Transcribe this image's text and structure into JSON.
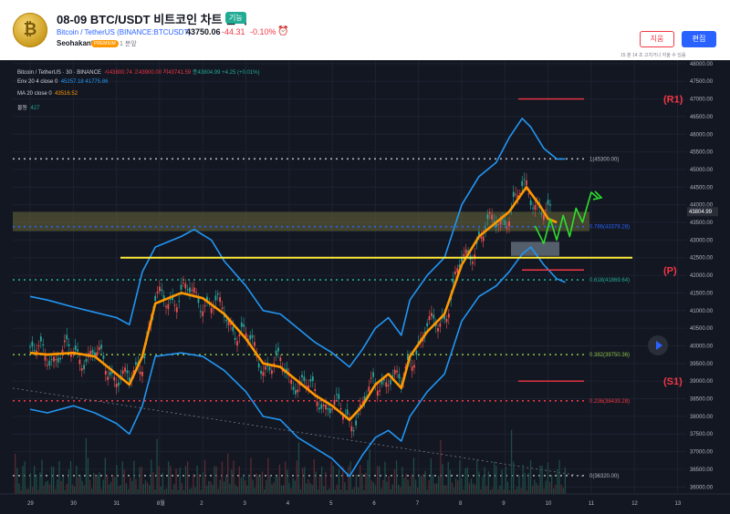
{
  "header": {
    "logo_symbol": "₿",
    "title": "08-09 BTC/USDT 비트코인 차트 분석",
    "badge": "기능",
    "symbol": "Bitcoin / TetherUS (BINANCE:BTCUSDT)",
    "last_price": "43750.06",
    "change": "-44.31",
    "change_pct": "-0.10%",
    "alarm_icon": "alarm-clock-icon",
    "author": "Seohakant",
    "author_badge": "PREMIUM",
    "time_ago": "1 분앞",
    "delete_label": "지움",
    "edit_label": "편집",
    "edit_note": "15 분 14 초 고치거나 지울 수 있음",
    "colors": {
      "accent": "#2962ff",
      "down": "#f23645",
      "up": "#22ab94"
    }
  },
  "legend": {
    "line1": {
      "name": "Bitcoin / TetherUS · 30 · BINANCE",
      "o": "시43800.74",
      "h": "고43900.00",
      "l": "저43741.59",
      "c": "종43804.99",
      "chg": "+4.25 (+0.01%)"
    },
    "line2": {
      "name": "Env 20 4 close 0",
      "v1": "45257.18",
      "v2": "41775.86"
    },
    "line3": {
      "name": "MA 20 close 0",
      "v1": "43516.52"
    },
    "line4": {
      "name": "물동",
      "v1": "427"
    }
  },
  "chart_data": {
    "type": "line",
    "title": "Bitcoin / TetherUS · 30 · BINANCE",
    "x_ticks": [
      "29",
      "30",
      "31",
      "8월",
      "2",
      "3",
      "4",
      "5",
      "6",
      "7",
      "8",
      "9",
      "10",
      "11",
      "12",
      "13"
    ],
    "ylim": [
      35800,
      48100
    ],
    "y_ticks": [
      48000,
      47500,
      47000,
      46500,
      46000,
      45500,
      45000,
      44500,
      44000,
      43500,
      43000,
      42500,
      42000,
      41500,
      41000,
      40500,
      40000,
      39500,
      39000,
      38500,
      38000,
      37500,
      37000,
      36500,
      36000
    ],
    "last_price_label": "43804.99",
    "series": [
      {
        "name": "MA 20 close 0",
        "color": "#ff9800",
        "points": [
          [
            0,
            39800
          ],
          [
            0.4,
            39750
          ],
          [
            1,
            39800
          ],
          [
            1.5,
            39700
          ],
          [
            2,
            39200
          ],
          [
            2.3,
            38900
          ],
          [
            2.6,
            39700
          ],
          [
            2.9,
            41200
          ],
          [
            3.5,
            41500
          ],
          [
            4,
            41350
          ],
          [
            4.5,
            40900
          ],
          [
            5,
            40200
          ],
          [
            5.4,
            39500
          ],
          [
            5.8,
            39400
          ],
          [
            6.2,
            39000
          ],
          [
            6.6,
            38600
          ],
          [
            7,
            38300
          ],
          [
            7.4,
            37900
          ],
          [
            7.7,
            38300
          ],
          [
            8.0,
            38900
          ],
          [
            8.3,
            39200
          ],
          [
            8.6,
            38800
          ],
          [
            8.8,
            39700
          ],
          [
            9.2,
            40400
          ],
          [
            9.6,
            40900
          ],
          [
            10.0,
            42300
          ],
          [
            10.4,
            43100
          ],
          [
            10.8,
            43500
          ],
          [
            11.1,
            43800
          ],
          [
            11.5,
            44500
          ],
          [
            11.8,
            44000
          ],
          [
            12.0,
            43600
          ],
          [
            12.2,
            43500
          ]
        ]
      },
      {
        "name": "Env 20 4 close 0 (upper)",
        "color": "#2196f3",
        "points": [
          [
            0,
            41400
          ],
          [
            0.4,
            41300
          ],
          [
            1,
            41100
          ],
          [
            1.5,
            40950
          ],
          [
            2,
            40800
          ],
          [
            2.3,
            40600
          ],
          [
            2.6,
            42100
          ],
          [
            2.9,
            42800
          ],
          [
            3.5,
            43100
          ],
          [
            3.8,
            43300
          ],
          [
            4.2,
            43000
          ],
          [
            4.5,
            42400
          ],
          [
            5,
            41700
          ],
          [
            5.4,
            41000
          ],
          [
            5.8,
            40900
          ],
          [
            6.2,
            40500
          ],
          [
            6.6,
            40100
          ],
          [
            7,
            39800
          ],
          [
            7.4,
            39400
          ],
          [
            7.7,
            39900
          ],
          [
            8.0,
            40500
          ],
          [
            8.3,
            40800
          ],
          [
            8.6,
            40300
          ],
          [
            8.8,
            41300
          ],
          [
            9.2,
            42000
          ],
          [
            9.6,
            42500
          ],
          [
            10.0,
            44000
          ],
          [
            10.4,
            44800
          ],
          [
            10.8,
            45200
          ],
          [
            11.1,
            45900
          ],
          [
            11.4,
            46450
          ],
          [
            11.6,
            46200
          ],
          [
            11.9,
            45600
          ],
          [
            12.2,
            45300
          ],
          [
            12.4,
            45300
          ]
        ]
      },
      {
        "name": "Env 20 4 close 0 (lower)",
        "color": "#2196f3",
        "points": [
          [
            0,
            38200
          ],
          [
            0.4,
            38100
          ],
          [
            1,
            38300
          ],
          [
            1.5,
            38100
          ],
          [
            2,
            37800
          ],
          [
            2.3,
            37500
          ],
          [
            2.6,
            38300
          ],
          [
            2.9,
            39700
          ],
          [
            3.5,
            39800
          ],
          [
            4,
            39700
          ],
          [
            4.5,
            39300
          ],
          [
            5,
            38700
          ],
          [
            5.4,
            38000
          ],
          [
            5.8,
            37900
          ],
          [
            6.2,
            37400
          ],
          [
            6.6,
            37100
          ],
          [
            7,
            36800
          ],
          [
            7.4,
            36300
          ],
          [
            7.7,
            36900
          ],
          [
            8.0,
            37400
          ],
          [
            8.3,
            37600
          ],
          [
            8.6,
            37300
          ],
          [
            8.8,
            38000
          ],
          [
            9.2,
            38700
          ],
          [
            9.6,
            39200
          ],
          [
            10.0,
            40700
          ],
          [
            10.4,
            41400
          ],
          [
            10.8,
            41700
          ],
          [
            11.1,
            42100
          ],
          [
            11.4,
            42600
          ],
          [
            11.6,
            42800
          ],
          [
            11.9,
            42300
          ],
          [
            12.2,
            41900
          ],
          [
            12.4,
            41800
          ]
        ]
      },
      {
        "name": "Price projection",
        "color": "#2ee02e",
        "points": [
          [
            11.7,
            43400
          ],
          [
            11.9,
            42900
          ],
          [
            12.05,
            43600
          ],
          [
            12.2,
            43000
          ],
          [
            12.35,
            43700
          ],
          [
            12.5,
            43100
          ],
          [
            12.65,
            43900
          ],
          [
            12.8,
            43500
          ],
          [
            13.0,
            44350
          ],
          [
            13.15,
            44200
          ]
        ]
      }
    ],
    "levels": [
      {
        "label": "1(45300.00)",
        "value": 45300,
        "color": "#b2b5be"
      },
      {
        "label": "0.786(43378.28)",
        "value": 43378.28,
        "color": "#2962ff"
      },
      {
        "label": "0.618(41869.64)",
        "value": 41869.64,
        "color": "#22ab94"
      },
      {
        "label": "0.382(39750.36)",
        "value": 39750.36,
        "color": "#8bc34a"
      },
      {
        "label": "0.236(38439.28)",
        "value": 38439.28,
        "color": "#f23645"
      },
      {
        "label": "0(36320.00)",
        "value": 36320,
        "color": "#b2b5be"
      }
    ],
    "zones": [
      {
        "name": "R1",
        "label": "(R1)",
        "value": 47000,
        "color": "#f23645"
      },
      {
        "name": "P",
        "label": "(P)",
        "value": 42150,
        "color": "#f23645"
      },
      {
        "name": "S1",
        "label": "(S1)",
        "value": 39000,
        "color": "#f23645"
      }
    ],
    "support_line": {
      "value": 42500,
      "color": "#ffeb3b"
    },
    "resistance_box": [
      43250,
      43800
    ],
    "grid": true
  }
}
